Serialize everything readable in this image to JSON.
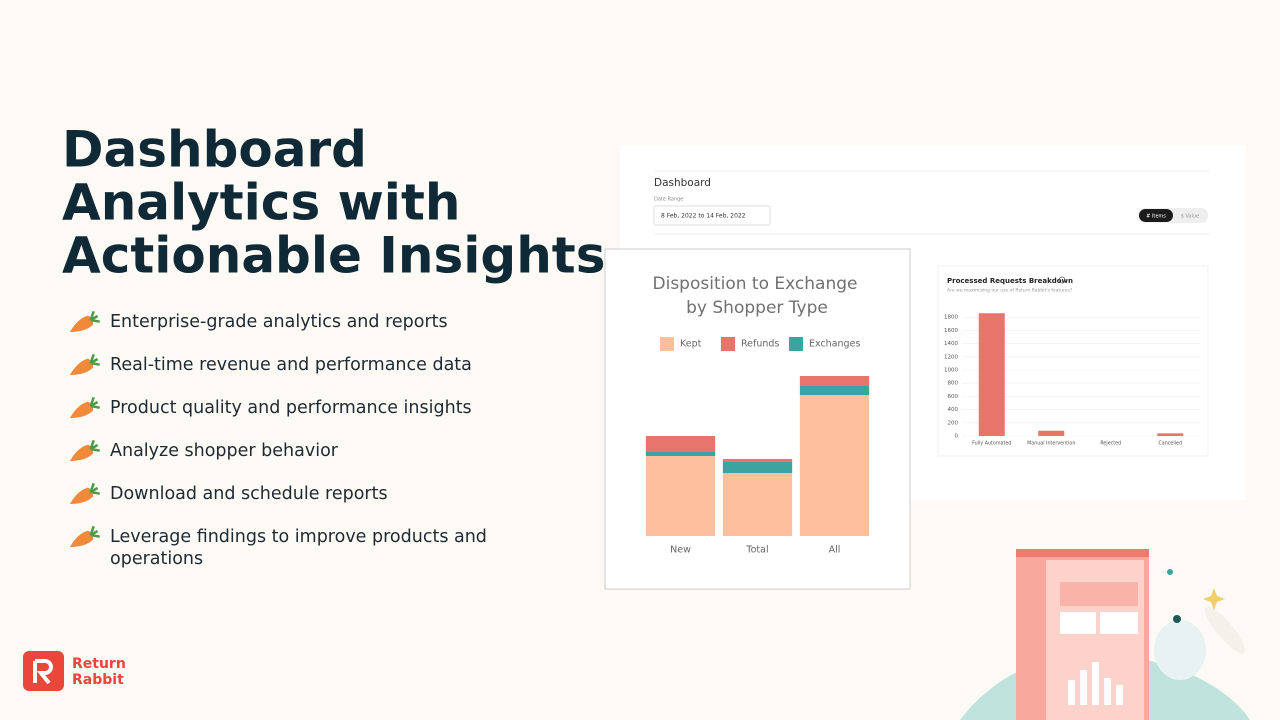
{
  "headline": [
    "Dashboard",
    "Analytics with",
    "Actionable Insights"
  ],
  "bullets": [
    "Enterprise-grade analytics and reports",
    "Real-time revenue and performance data",
    "Product quality and performance insights",
    "Analyze shopper behavior",
    "Download and schedule reports",
    [
      "Leverage findings to improve products and",
      "operations"
    ]
  ],
  "logo": [
    "Return",
    "Rabbit"
  ],
  "dashboard": {
    "title": "Dashboard",
    "date_label": "Date Range",
    "date_value": "8 Feb, 2022 to 14 Feb, 2022",
    "toggle": [
      "# Items",
      "$ Value"
    ]
  },
  "chart_data": [
    {
      "type": "stacked-bar",
      "title": [
        "Disposition to Exchange",
        "by Shopper Type"
      ],
      "categories": [
        "New",
        "Total",
        "All"
      ],
      "series": [
        {
          "name": "Kept",
          "color": "#fdbf9c",
          "values": [
            80,
            63,
            141
          ]
        },
        {
          "name": "Refunds",
          "color": "#e8756b",
          "values": [
            16,
            3,
            10
          ]
        },
        {
          "name": "Exchanges",
          "color": "#3ba3a0",
          "values": [
            4,
            11,
            9
          ]
        }
      ],
      "ylim": [
        0,
        170
      ]
    },
    {
      "type": "bar",
      "title": "Processed Requests Breakdown",
      "subtitle": "Are we maximizing our use of Return Rabbit's features?",
      "categories": [
        "Fully Automated",
        "Manual Intervention",
        "Rejected",
        "Cancelled"
      ],
      "values": [
        1860,
        80,
        0,
        40
      ],
      "color": "#e8756b",
      "ylim": [
        0,
        2000
      ],
      "yticks": [
        0,
        200,
        400,
        600,
        800,
        1000,
        1200,
        1400,
        1600,
        1800
      ],
      "grid": true
    }
  ]
}
